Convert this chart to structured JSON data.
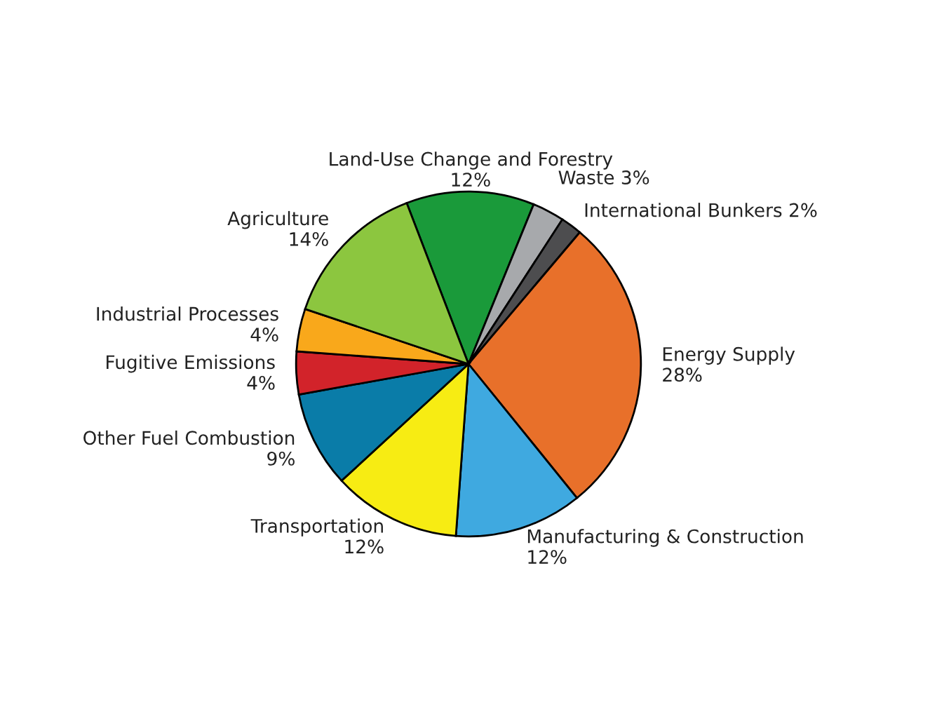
{
  "chart_data": {
    "type": "pie",
    "categories": [
      "Land-Use Change and Forestry",
      "Waste",
      "International Bunkers",
      "Energy Supply",
      "Manufacturing & Construction",
      "Transportation",
      "Other Fuel Combustion",
      "Fugitive Emissions",
      "Industrial Processes",
      "Agriculture"
    ],
    "values": [
      12,
      3,
      2,
      28,
      12,
      12,
      9,
      4,
      4,
      14
    ],
    "value_labels": [
      "12%",
      "3%",
      "2%",
      "28%",
      "12%",
      "12%",
      "9%",
      "4%",
      "4%",
      "14%"
    ],
    "colors": [
      "#1a9a3a",
      "#a7a9ac",
      "#4d4d4f",
      "#e8702a",
      "#3fa9e0",
      "#f7ec13",
      "#0a7ca8",
      "#d2232a",
      "#f9a81b",
      "#8cc63f"
    ]
  }
}
